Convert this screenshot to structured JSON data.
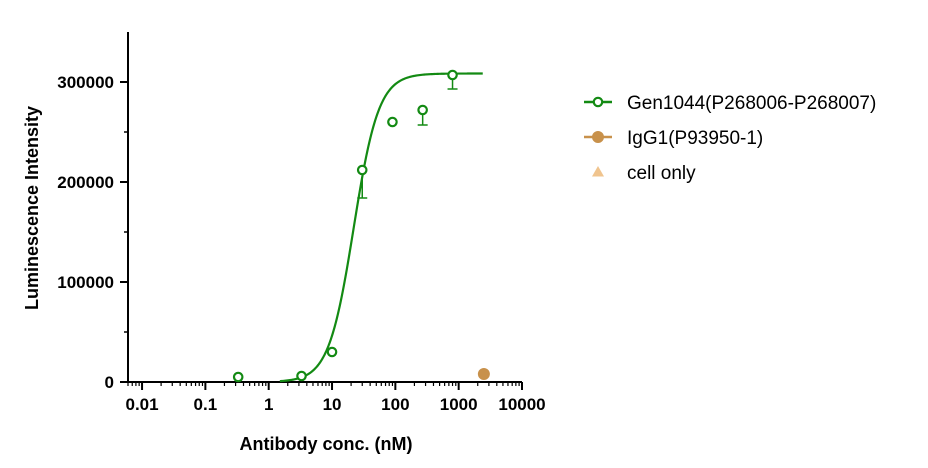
{
  "chart_data": {
    "type": "scatter",
    "xlabel": "Antibody conc. (nM)",
    "ylabel": "Luminescence Intensity",
    "x_scale": "log",
    "xlim": [
      0.006,
      10000
    ],
    "ylim": [
      0,
      350000
    ],
    "x_ticks": [
      0.01,
      0.1,
      1,
      10,
      100,
      1000,
      10000
    ],
    "x_tick_labels": [
      "0.01",
      "0.1",
      "1",
      "10",
      "100",
      "1000",
      "10000"
    ],
    "y_ticks": [
      0,
      100000,
      200000,
      300000
    ],
    "y_tick_labels": [
      "0",
      "100000",
      "200000",
      "300000"
    ],
    "grid": false,
    "legend_position": "right",
    "series": [
      {
        "name": "Gen1044(P268006-P268007)",
        "color": "#138a13",
        "marker": "open-circle",
        "x": [
          0.33,
          3.3,
          10,
          30,
          90,
          270,
          800
        ],
        "y": [
          5000,
          6000,
          30000,
          212000,
          260000,
          272000,
          307000
        ],
        "error_low": [
          null,
          null,
          null,
          28000,
          null,
          15000,
          14000
        ],
        "fit": {
          "model": "4PL",
          "bottom": 0,
          "top": 308500,
          "ec50": 22,
          "hill": 2.2,
          "x_range": [
            1.5,
            2400
          ]
        }
      },
      {
        "name": "IgG1(P93950-1)",
        "color": "#c8914b",
        "marker": "filled-circle",
        "x": [
          2500
        ],
        "y": [
          8000
        ]
      },
      {
        "name": "cell only",
        "color": "#f0c48e",
        "marker": "triangle",
        "x": [],
        "y": []
      }
    ]
  }
}
